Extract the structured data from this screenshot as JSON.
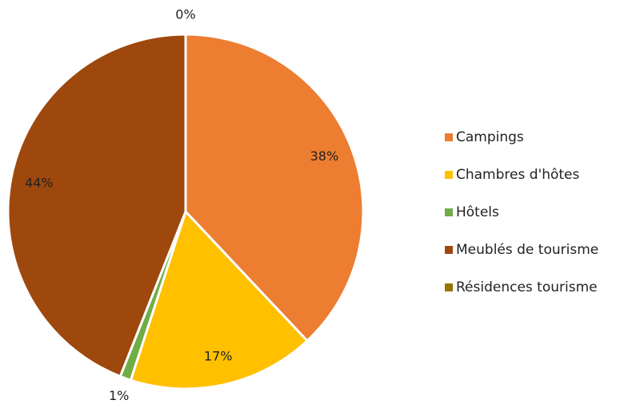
{
  "chart_data": {
    "type": "pie",
    "categories": [
      "Campings",
      "Chambres d'hôtes",
      "Hôtels",
      "Meublés de tourisme",
      "Résidences tourisme"
    ],
    "values": [
      38,
      17,
      1,
      44,
      0
    ],
    "value_labels": [
      "38%",
      "17%",
      "1%",
      "44%",
      "0%"
    ],
    "colors": [
      "#ed7d31",
      "#ffc000",
      "#70ad47",
      "#9e480e",
      "#997300"
    ],
    "legend": "right"
  }
}
